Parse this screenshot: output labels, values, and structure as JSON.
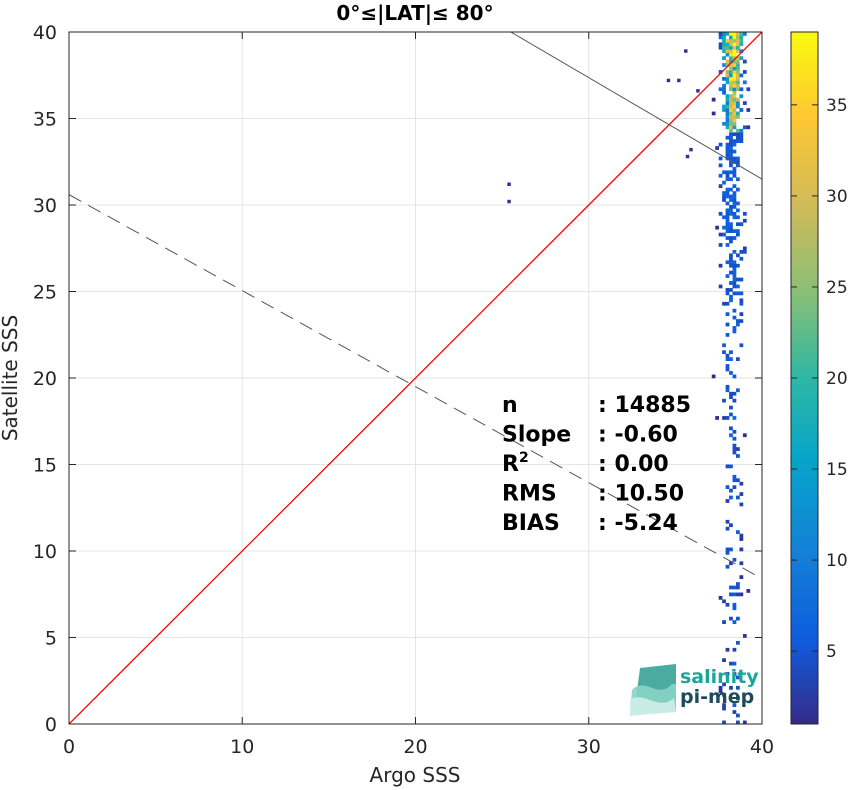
{
  "chart_data": {
    "type": "heatmap",
    "title": "0°≤|LAT|≤ 80°",
    "xlabel": "Argo SSS",
    "ylabel": "Satellite SSS",
    "xlim": [
      0,
      40
    ],
    "ylim": [
      0,
      40
    ],
    "xticks": [
      "0",
      "10",
      "20",
      "30",
      "40"
    ],
    "yticks": [
      "0",
      "5",
      "10",
      "15",
      "20",
      "25",
      "30",
      "35",
      "40"
    ],
    "grid": true,
    "colormap": "parula",
    "colorbar": {
      "range": [
        1,
        39
      ],
      "ticks": [
        "5",
        "10",
        "15",
        "20",
        "25",
        "30",
        "35"
      ]
    },
    "density": {
      "x_range": [
        36.5,
        40
      ],
      "peak_x": 38.2,
      "peak_count": 39,
      "isolated_points": [
        [
          25.3,
          31.1
        ],
        [
          25.3,
          30.1
        ],
        [
          34.5,
          37.1
        ],
        [
          35.1,
          37.1
        ],
        [
          35.6,
          32.7
        ],
        [
          35.8,
          33.1
        ],
        [
          35.5,
          38.8
        ],
        [
          36.2,
          36.5
        ]
      ]
    },
    "reference_lines": [
      {
        "name": "1:1 line",
        "style": "solid",
        "color": "#ff0000",
        "points": [
          [
            0,
            0
          ],
          [
            40,
            40
          ]
        ]
      },
      {
        "name": "regression fit",
        "style": "dashed",
        "color": "#555555",
        "points": [
          [
            0,
            30.6
          ],
          [
            40,
            8.4
          ]
        ]
      },
      {
        "name": "secondary fit",
        "style": "solid",
        "color": "#555555",
        "points": [
          [
            25.5,
            40
          ],
          [
            40,
            31.5
          ]
        ]
      }
    ],
    "stats": [
      {
        "label": "n",
        "value": ": 14885"
      },
      {
        "label": "Slope",
        "value": ": -0.60"
      },
      {
        "label": "R",
        "sup": "2",
        "value": ": 0.00"
      },
      {
        "label": "RMS",
        "value": ": 10.50"
      },
      {
        "label": "BIAS",
        "value": ": -5.24"
      }
    ]
  },
  "logo": {
    "line1": "salinity",
    "line2": "pi-mep"
  },
  "colors": {
    "one_to_one": "#ff0000",
    "fit": "#555555",
    "grid": "#e6e6e6",
    "axis": "#262626",
    "logo_teal": "#1aa79a",
    "logo_dark": "#1d4b5a"
  }
}
